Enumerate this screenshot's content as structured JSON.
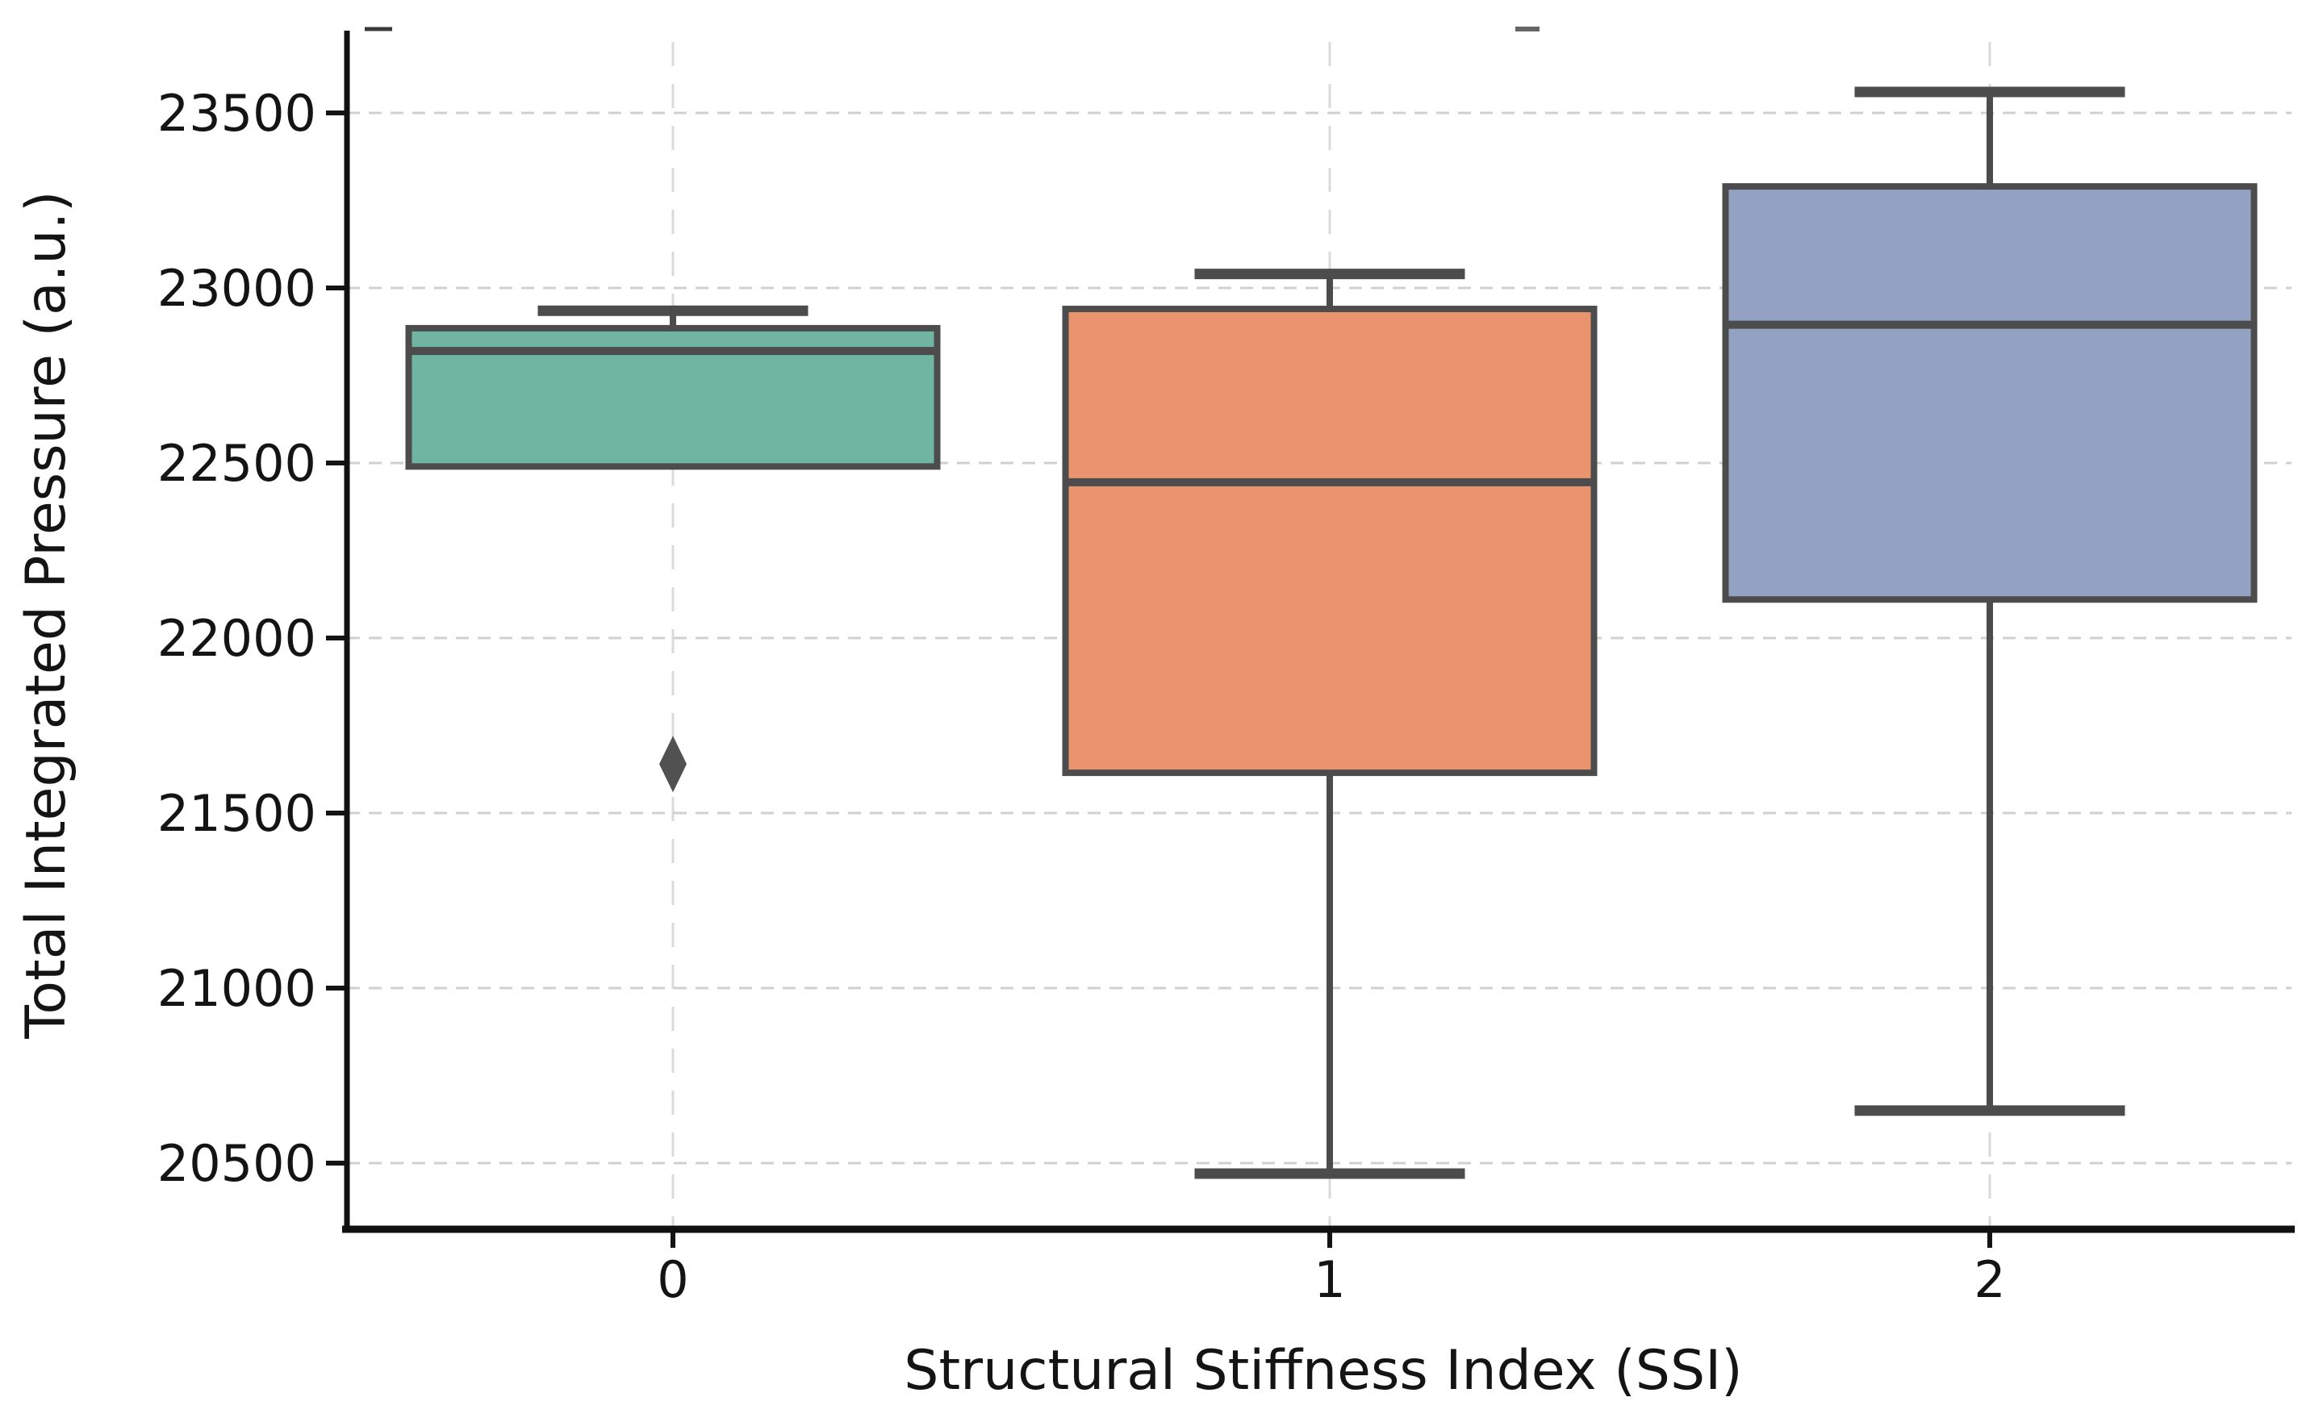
{
  "figure": {
    "background": "#ffffff"
  },
  "chart_data": {
    "type": "box",
    "xlabel": "Structural Stiffness Index (SSI)",
    "ylabel": "Total Integrated Pressure (a.u.)",
    "categories": [
      "0",
      "1",
      "2"
    ],
    "y_ticks": [
      20500,
      21000,
      21500,
      22000,
      22500,
      23000,
      23500
    ],
    "y_tick_labels": [
      "20500",
      "21000",
      "21500",
      "22000",
      "22500",
      "23000",
      "23500"
    ],
    "ylim": [
      20315,
      23705
    ],
    "grid": true,
    "legend": "none",
    "series": [
      {
        "category": "0",
        "whisker_low": 22490,
        "q1": 22490,
        "median": 22820,
        "q3": 22885,
        "whisker_high": 22935,
        "outliers": [
          21640
        ],
        "fill_color": "#6fb5a1"
      },
      {
        "category": "1",
        "whisker_low": 20470,
        "q1": 21615,
        "median": 22445,
        "q3": 22940,
        "whisker_high": 23040,
        "outliers": [],
        "fill_color": "#e9946f"
      },
      {
        "category": "2",
        "whisker_low": 20650,
        "q1": 22110,
        "median": 22895,
        "q3": 23290,
        "whisker_high": 23560,
        "outliers": [],
        "fill_color": "#93a2c3"
      }
    ]
  },
  "colors": {
    "box_edge": "#4c4c4c",
    "median_line": "#4c4c4c",
    "whisker": "#4c4c4c",
    "outlier": "#515151",
    "gridline_h": "#d0d0d0",
    "gridline_v": "#dadada",
    "spine": "#111111",
    "tick": "#141414",
    "text": "#141414",
    "background": "#ffffff"
  }
}
